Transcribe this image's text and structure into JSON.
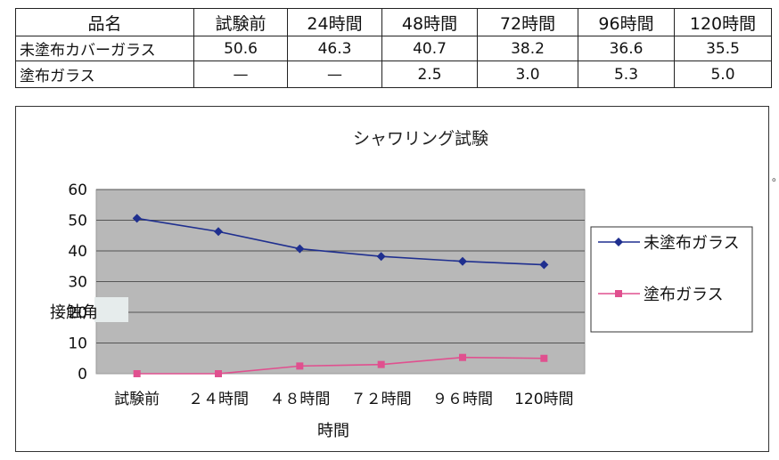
{
  "table": {
    "header": [
      "品名",
      "試験前",
      "24時間",
      "48時間",
      "72時間",
      "96時間",
      "120時間"
    ],
    "rows": [
      {
        "name": "未塗布カバーガラス",
        "cells": [
          "50.6",
          "46.3",
          "40.7",
          "38.2",
          "36.6",
          "35.5"
        ]
      },
      {
        "name": "塗布ガラス",
        "cells": [
          "—",
          "—",
          "2.5",
          "3.0",
          "5.3",
          "5.0"
        ]
      }
    ]
  },
  "chart_data": {
    "type": "line",
    "title": "シャワリング試験",
    "xlabel": "時間",
    "ylabel": "接触角",
    "categories": [
      "試験前",
      "２４時間",
      "４８時間",
      "７２時間",
      "９６時間",
      "120時間"
    ],
    "ylim": [
      0,
      60
    ],
    "yticks": [
      0,
      10,
      20,
      30,
      40,
      50,
      60
    ],
    "grid": true,
    "legend_position": "right",
    "series": [
      {
        "name": "未塗布ガラス",
        "color": "#1f2f8f",
        "marker": "diamond",
        "values": [
          50.6,
          46.3,
          40.7,
          38.2,
          36.6,
          35.5
        ]
      },
      {
        "name": "塗布ガラス",
        "color": "#e0508f",
        "marker": "square",
        "values": [
          0,
          0,
          2.5,
          3.0,
          5.3,
          5.0
        ]
      }
    ]
  },
  "stray_mark": "。"
}
